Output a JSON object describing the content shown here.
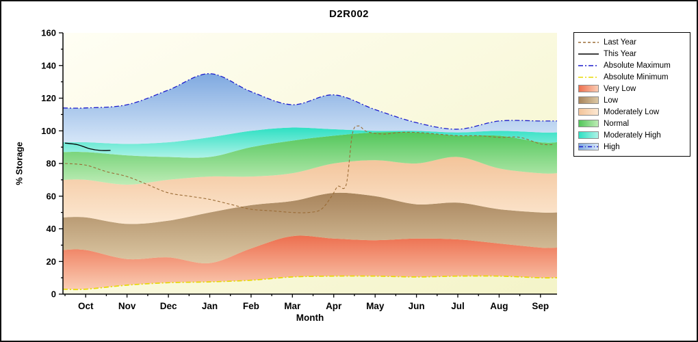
{
  "chart_data": {
    "type": "area",
    "title": "D2R002",
    "xlabel": "Month",
    "ylabel": "% Storage",
    "ylim": [
      0,
      160
    ],
    "ytick_major_step": 20,
    "ytick_minor_step": 10,
    "legend_position": "right",
    "plot_bg": {
      "top": "#FFFEF4",
      "bottom": "#F4F4C8"
    },
    "months": [
      "Oct",
      "Nov",
      "Dec",
      "Jan",
      "Feb",
      "Mar",
      "Apr",
      "May",
      "Jun",
      "Jul",
      "Aug",
      "Sep"
    ],
    "series": {
      "absolute_minimum": [
        3,
        5.5,
        7,
        7.5,
        8.5,
        10.5,
        11,
        11,
        10.5,
        11,
        11,
        10
      ],
      "very_low_top": [
        27,
        21.5,
        22.5,
        19,
        28,
        35.5,
        34,
        33,
        34,
        33.5,
        31,
        28.5
      ],
      "low_top": [
        47,
        43,
        45,
        50,
        54.5,
        57,
        62,
        60,
        55,
        56,
        52,
        50
      ],
      "moderately_low_top": [
        70,
        67,
        70,
        72,
        72,
        74,
        80,
        82,
        80,
        84,
        77,
        74
      ],
      "normal_top": [
        87,
        85,
        84,
        84,
        90,
        94,
        97,
        99,
        99,
        97,
        97,
        93
      ],
      "moderately_high_top": [
        93,
        92,
        93,
        96,
        100,
        102,
        101,
        100,
        100,
        99,
        100,
        99
      ],
      "absolute_maximum": [
        114,
        116,
        125,
        135,
        124,
        116,
        122,
        113,
        105,
        101,
        106,
        106
      ]
    },
    "bands": [
      {
        "name": "Very Low",
        "bottom": "absolute_minimum",
        "top": "very_low_top",
        "color_top": "#ED6F4F",
        "color_bottom": "#FACDB4"
      },
      {
        "name": "Low",
        "bottom": "very_low_top",
        "top": "low_top",
        "color_top": "#A8845C",
        "color_bottom": "#DCC8A4"
      },
      {
        "name": "Moderately Low",
        "bottom": "low_top",
        "top": "moderately_low_top",
        "color_top": "#F3C49A",
        "color_bottom": "#FCE8D2"
      },
      {
        "name": "Normal",
        "bottom": "moderately_low_top",
        "top": "normal_top",
        "color_top": "#52C65A",
        "color_bottom": "#BEECB6"
      },
      {
        "name": "Moderately High",
        "bottom": "normal_top",
        "top": "moderately_high_top",
        "color_top": "#2EE0C3",
        "color_bottom": "#AEF2E7"
      },
      {
        "name": "High",
        "bottom": "moderately_high_top",
        "top": "absolute_maximum",
        "color_top": "#7FA9E0",
        "color_bottom": "#D7E7F8"
      }
    ],
    "lines": {
      "last_year": {
        "x": [
          -0.5,
          0,
          0.5,
          1,
          1.5,
          2,
          2.5,
          3,
          3.5,
          4,
          4.5,
          5,
          5.4,
          5.7,
          5.95,
          6.1,
          6.3,
          6.45,
          6.6,
          6.8,
          7.2,
          7.6,
          8,
          8.5,
          9,
          9.5,
          10,
          10.5,
          11,
          11.3
        ],
        "y": [
          80,
          79,
          75,
          72,
          67,
          62,
          60,
          58,
          55,
          52,
          51,
          50,
          50,
          52,
          60,
          66,
          67,
          98,
          103,
          99.5,
          98,
          99,
          99,
          98,
          97,
          97,
          96,
          96,
          92,
          91.5
        ]
      },
      "this_year": {
        "x": [
          -0.5,
          -0.2,
          0.1,
          0.35,
          0.6
        ],
        "y": [
          92.5,
          91.5,
          89,
          88,
          88
        ]
      }
    },
    "line_styles": {
      "last_year": {
        "color": "#9A6B35",
        "dash": "4 3",
        "width": 1.1
      },
      "this_year": {
        "color": "#000000",
        "dash": "",
        "width": 1.3
      },
      "absolute_maximum": {
        "color": "#1A1ACB",
        "dash": "7 3 2 3",
        "width": 1.3
      },
      "absolute_minimum": {
        "color": "#E8D900",
        "dash": "7 3 2 3",
        "width": 1.7
      }
    },
    "legend": [
      {
        "label": "Last Year",
        "swatch": "line",
        "color": "#9A6B35",
        "dash": "4 3"
      },
      {
        "label": "This Year",
        "swatch": "line",
        "color": "#000000",
        "dash": ""
      },
      {
        "label": "Absolute Maximum",
        "swatch": "line",
        "color": "#1A1ACB",
        "dash": "7 3 2 3"
      },
      {
        "label": "Absolute Minimum",
        "swatch": "line",
        "color": "#E8D900",
        "dash": "7 3 2 3"
      },
      {
        "label": "Very Low",
        "swatch": "band",
        "color_left": "#ED6F4F",
        "color_right": "#FACDB4"
      },
      {
        "label": "Low",
        "swatch": "band",
        "color_left": "#A8845C",
        "color_right": "#DCC8A4"
      },
      {
        "label": "Moderately Low",
        "swatch": "band",
        "color_left": "#F3C49A",
        "color_right": "#FCE8D2"
      },
      {
        "label": "Normal",
        "swatch": "band",
        "color_left": "#52C65A",
        "color_right": "#BEECB6"
      },
      {
        "label": "Moderately High",
        "swatch": "band",
        "color_left": "#2EE0C3",
        "color_right": "#AEF2E7"
      },
      {
        "label": "High",
        "swatch": "band_line",
        "color_left": "#7FA9E0",
        "color_right": "#D7E7F8",
        "line_color": "#1A1ACB",
        "dash": "6 3 1 3"
      }
    ]
  }
}
